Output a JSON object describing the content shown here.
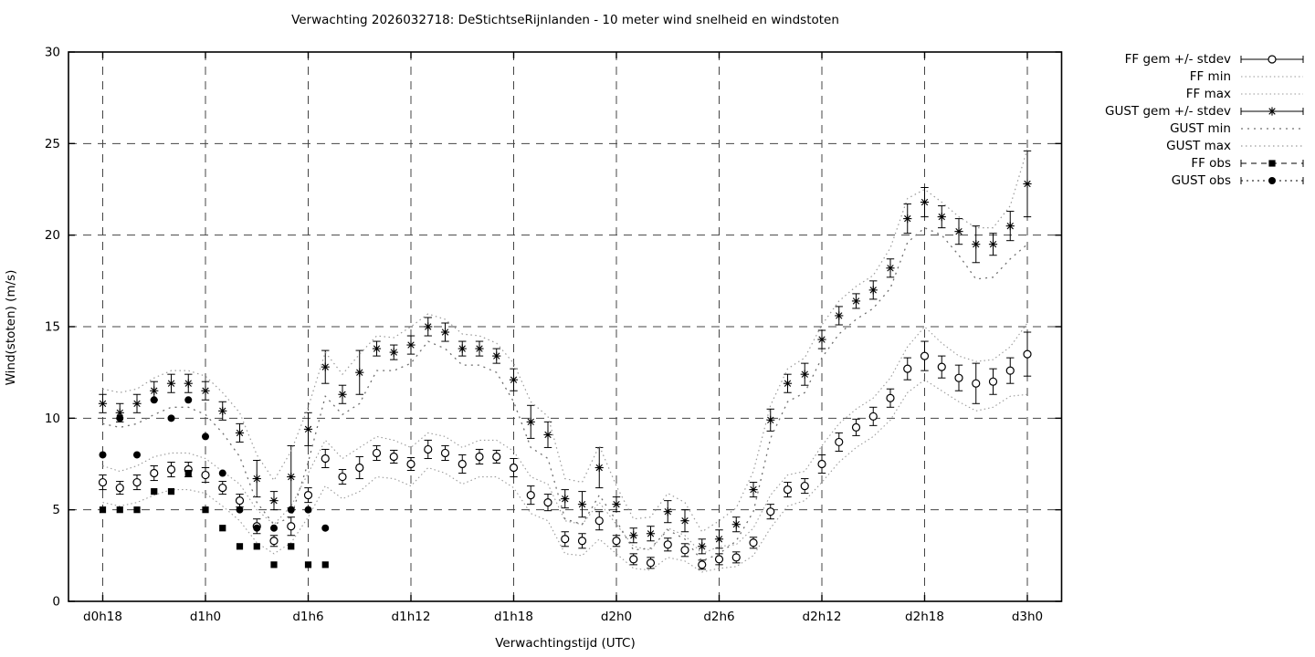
{
  "title": "Verwachting 2026032718: DeStichtseRijnlanden - 10 meter wind snelheid en windstoten",
  "colors": {
    "foreground": "#000000",
    "grid": "#444444",
    "envelope_gray": "#9a9a9a",
    "envelope_dark": "#6f6f6f"
  },
  "chart_data": {
    "type": "line",
    "title": "Verwachting 2026032718: DeStichtseRijnlanden - 10 meter wind snelheid en windstoten",
    "xlabel": "Verwachtingstijd (UTC)",
    "ylabel": "Wind(stoten) (m/s)",
    "ylim": [
      0,
      30
    ],
    "xlim_hours": [
      -2,
      56
    ],
    "grid": true,
    "legend_position": "outside-top-right",
    "y_ticks": [
      0,
      5,
      10,
      15,
      20,
      25,
      30
    ],
    "x_ticks": {
      "hours": [
        0,
        6,
        12,
        18,
        24,
        30,
        36,
        42,
        48,
        54
      ],
      "labels": [
        "d0h18",
        "d1h0",
        "d1h6",
        "d1h12",
        "d1h18",
        "d2h0",
        "d2h6",
        "d2h12",
        "d2h18",
        "d3h0"
      ]
    },
    "x_hours": [
      0,
      1,
      2,
      3,
      4,
      5,
      6,
      7,
      8,
      9,
      10,
      11,
      12,
      13,
      14,
      15,
      16,
      17,
      18,
      19,
      20,
      21,
      22,
      23,
      24,
      25,
      26,
      27,
      28,
      29,
      30,
      31,
      32,
      33,
      34,
      35,
      36,
      37,
      38,
      39,
      40,
      41,
      42,
      43,
      44,
      45,
      46,
      47,
      48,
      49,
      50,
      51,
      52,
      53,
      54
    ],
    "series": [
      {
        "name": "FF gem +/- stdev",
        "style": "errorbar-circle",
        "values": [
          6.5,
          6.2,
          6.5,
          7.0,
          7.2,
          7.2,
          6.9,
          6.2,
          5.5,
          4.1,
          3.3,
          4.1,
          5.8,
          7.8,
          6.8,
          7.3,
          8.1,
          7.9,
          7.5,
          8.3,
          8.1,
          7.5,
          7.9,
          7.9,
          7.3,
          5.8,
          5.4,
          3.4,
          3.3,
          4.4,
          3.3,
          2.3,
          2.1,
          3.1,
          2.8,
          2.0,
          2.3,
          2.4,
          3.2,
          4.9,
          6.1,
          6.3,
          7.5,
          8.7,
          9.5,
          10.1,
          11.1,
          12.7,
          13.4,
          12.8,
          12.2,
          11.9,
          12.0,
          12.6,
          13.5
        ],
        "stdev": [
          0.4,
          0.35,
          0.4,
          0.4,
          0.4,
          0.4,
          0.4,
          0.35,
          0.35,
          0.4,
          0.3,
          0.5,
          0.4,
          0.5,
          0.4,
          0.6,
          0.4,
          0.35,
          0.35,
          0.5,
          0.4,
          0.5,
          0.4,
          0.35,
          0.5,
          0.5,
          0.45,
          0.4,
          0.4,
          0.5,
          0.3,
          0.3,
          0.3,
          0.35,
          0.35,
          0.25,
          0.3,
          0.3,
          0.3,
          0.4,
          0.4,
          0.4,
          0.5,
          0.5,
          0.45,
          0.5,
          0.5,
          0.6,
          0.8,
          0.6,
          0.7,
          1.1,
          0.7,
          0.7,
          1.2
        ]
      },
      {
        "name": "FF min",
        "style": "dotted-fine",
        "values": [
          5.4,
          5.2,
          5.4,
          5.8,
          6.1,
          6.1,
          5.9,
          5.2,
          4.4,
          3.2,
          2.6,
          3.2,
          4.6,
          6.3,
          5.6,
          6.0,
          6.8,
          6.7,
          6.3,
          7.3,
          7.0,
          6.4,
          6.8,
          6.8,
          6.2,
          4.8,
          4.4,
          2.6,
          2.5,
          3.4,
          2.6,
          1.8,
          1.7,
          2.4,
          2.2,
          1.6,
          1.8,
          1.9,
          2.5,
          4.0,
          5.2,
          5.5,
          6.5,
          7.6,
          8.4,
          9.0,
          9.9,
          11.4,
          12.1,
          11.5,
          10.9,
          10.4,
          10.6,
          11.2,
          11.3
        ]
      },
      {
        "name": "FF max",
        "style": "dotted-fine",
        "values": [
          7.4,
          7.1,
          7.4,
          7.9,
          8.1,
          8.1,
          7.8,
          7.1,
          6.4,
          5.0,
          4.2,
          5.2,
          7.0,
          8.8,
          7.8,
          8.4,
          9.0,
          8.8,
          8.4,
          9.2,
          9.0,
          8.4,
          8.8,
          8.8,
          8.2,
          6.8,
          6.4,
          4.4,
          4.2,
          5.4,
          4.2,
          3.0,
          2.8,
          4.0,
          3.6,
          2.6,
          3.0,
          3.1,
          4.0,
          5.8,
          6.9,
          7.1,
          8.5,
          9.7,
          10.5,
          11.1,
          12.2,
          13.9,
          15.0,
          14.1,
          13.4,
          13.1,
          13.2,
          13.9,
          15.2
        ]
      },
      {
        "name": "GUST gem +/- stdev",
        "style": "errorbar-asterisk",
        "values": [
          10.8,
          10.3,
          10.8,
          11.5,
          11.9,
          11.9,
          11.5,
          10.4,
          9.2,
          6.7,
          5.5,
          6.8,
          9.4,
          12.8,
          11.3,
          12.5,
          13.8,
          13.6,
          14.0,
          15.0,
          14.7,
          13.8,
          13.8,
          13.4,
          12.1,
          9.8,
          9.1,
          5.6,
          5.3,
          7.3,
          5.3,
          3.6,
          3.7,
          4.9,
          4.4,
          3.0,
          3.4,
          4.2,
          6.1,
          9.9,
          11.9,
          12.4,
          14.3,
          15.6,
          16.4,
          17.0,
          18.2,
          20.9,
          21.8,
          21.0,
          20.2,
          19.5,
          19.5,
          20.5,
          22.8
        ],
        "stdev": [
          0.5,
          0.5,
          0.5,
          0.5,
          0.5,
          0.5,
          0.5,
          0.5,
          0.5,
          1.0,
          0.5,
          1.7,
          0.9,
          0.9,
          0.5,
          1.2,
          0.4,
          0.4,
          0.5,
          0.5,
          0.5,
          0.4,
          0.4,
          0.4,
          0.6,
          0.9,
          0.7,
          0.5,
          0.7,
          1.1,
          0.4,
          0.4,
          0.4,
          0.6,
          0.6,
          0.4,
          0.5,
          0.4,
          0.4,
          0.6,
          0.5,
          0.6,
          0.5,
          0.5,
          0.4,
          0.5,
          0.5,
          0.8,
          0.8,
          0.6,
          0.7,
          1.0,
          0.6,
          0.8,
          1.8
        ]
      },
      {
        "name": "GUST min",
        "style": "dotted-coarse",
        "values": [
          9.7,
          9.5,
          9.7,
          10.2,
          10.6,
          10.6,
          10.2,
          9.2,
          7.9,
          5.4,
          4.2,
          4.6,
          7.6,
          11.2,
          10.2,
          10.8,
          12.6,
          12.6,
          13.0,
          14.2,
          13.8,
          12.9,
          12.9,
          12.5,
          10.9,
          8.4,
          7.8,
          4.5,
          4.2,
          5.8,
          4.4,
          2.8,
          2.9,
          3.9,
          3.4,
          2.2,
          2.6,
          3.3,
          4.9,
          8.9,
          10.9,
          11.4,
          13.3,
          14.6,
          15.4,
          16.0,
          17.1,
          19.6,
          20.4,
          20.0,
          18.9,
          17.6,
          17.7,
          18.7,
          19.5
        ]
      },
      {
        "name": "GUST max",
        "style": "dotted-med",
        "values": [
          11.6,
          11.4,
          11.6,
          12.2,
          12.6,
          12.6,
          12.3,
          11.4,
          10.3,
          8.0,
          6.6,
          8.2,
          10.6,
          13.6,
          12.4,
          13.5,
          14.5,
          14.4,
          15.0,
          15.7,
          15.4,
          14.6,
          14.5,
          14.1,
          13.0,
          10.9,
          10.1,
          6.7,
          6.5,
          8.5,
          6.3,
          4.5,
          4.6,
          5.9,
          5.4,
          3.8,
          4.4,
          5.1,
          7.1,
          10.7,
          12.7,
          13.3,
          15.1,
          16.4,
          17.2,
          17.8,
          19.3,
          22.0,
          22.5,
          21.8,
          21.0,
          20.4,
          20.4,
          21.6,
          24.7
        ]
      },
      {
        "name": "FF obs",
        "style": "dashed-square",
        "x_hours": [
          0,
          1,
          2,
          3,
          4,
          5,
          6,
          7,
          8,
          9,
          10,
          11,
          12,
          13
        ],
        "values": [
          5,
          5,
          5,
          6,
          6,
          7,
          5,
          4,
          3,
          3,
          2,
          3,
          2,
          2
        ]
      },
      {
        "name": "GUST obs",
        "style": "dotdash-circle",
        "x_hours": [
          0,
          1,
          2,
          3,
          4,
          5,
          6,
          7,
          8,
          9,
          10,
          11,
          12,
          13
        ],
        "values": [
          8,
          10,
          8,
          11,
          10,
          11,
          9,
          7,
          5,
          4,
          4,
          5,
          5,
          4
        ]
      }
    ]
  }
}
